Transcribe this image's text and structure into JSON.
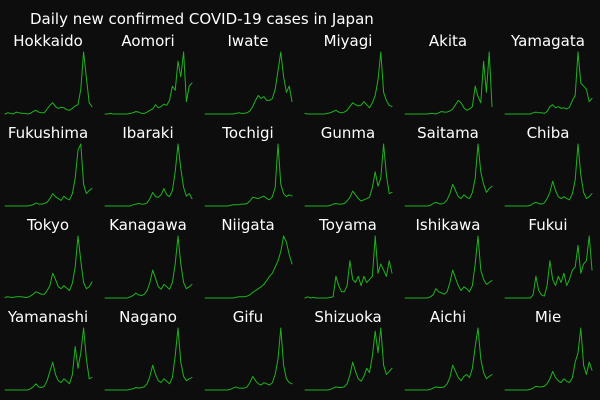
{
  "title": "Daily new confirmed COVID-19 cases in Japan",
  "chart_data": {
    "type": "line",
    "title": "Daily new confirmed COVID-19 cases in Japan",
    "layout": "small multiples, 4 rows x 6 columns, independent y scales",
    "axes_visible": false,
    "grid": false,
    "legend": "none",
    "line_color": "#1db31d",
    "background": "#0d0d0d",
    "panels": [
      {
        "name": "Hokkaido",
        "values": [
          0,
          2,
          1,
          0,
          3,
          2,
          1,
          1,
          0,
          1,
          4,
          6,
          3,
          2,
          2,
          8,
          14,
          18,
          12,
          9,
          11,
          10,
          7,
          6,
          9,
          13,
          15,
          40,
          100,
          58,
          18,
          12
        ]
      },
      {
        "name": "Aomori",
        "values": [
          0,
          0,
          1,
          0,
          0,
          0,
          0,
          0,
          0,
          1,
          2,
          4,
          3,
          1,
          1,
          3,
          6,
          8,
          15,
          10,
          12,
          16,
          14,
          22,
          45,
          38,
          85,
          60,
          100,
          20,
          45,
          50
        ]
      },
      {
        "name": "Iwate",
        "values": [
          0,
          0,
          0,
          0,
          0,
          0,
          0,
          0,
          0,
          0,
          0,
          1,
          2,
          1,
          1,
          2,
          5,
          12,
          22,
          30,
          25,
          28,
          22,
          22,
          25,
          40,
          70,
          100,
          60,
          35,
          45,
          20
        ]
      },
      {
        "name": "Miyagi",
        "values": [
          1,
          0,
          0,
          0,
          0,
          0,
          0,
          0,
          1,
          2,
          4,
          6,
          3,
          2,
          3,
          6,
          12,
          18,
          15,
          13,
          14,
          20,
          15,
          10,
          18,
          30,
          55,
          100,
          35,
          22,
          14,
          12
        ]
      },
      {
        "name": "Akita",
        "values": [
          0,
          0,
          0,
          0,
          0,
          0,
          0,
          0,
          0,
          1,
          1,
          0,
          2,
          4,
          3,
          3,
          5,
          8,
          15,
          22,
          18,
          10,
          6,
          8,
          12,
          45,
          28,
          18,
          85,
          35,
          100,
          12
        ]
      },
      {
        "name": "Yamagata",
        "values": [
          0,
          0,
          0,
          0,
          0,
          0,
          0,
          0,
          0,
          0,
          2,
          3,
          2,
          2,
          1,
          4,
          12,
          15,
          10,
          12,
          9,
          10,
          8,
          11,
          22,
          30,
          100,
          50,
          45,
          40,
          20,
          25
        ]
      },
      {
        "name": "Fukushima",
        "values": [
          0,
          0,
          0,
          0,
          0,
          0,
          0,
          0,
          0,
          1,
          2,
          5,
          3,
          3,
          4,
          6,
          12,
          20,
          15,
          12,
          9,
          16,
          12,
          10,
          20,
          45,
          90,
          100,
          35,
          20,
          25,
          28
        ]
      },
      {
        "name": "Ibaraki",
        "values": [
          0,
          0,
          0,
          0,
          0,
          0,
          0,
          0,
          0,
          0,
          2,
          3,
          4,
          3,
          3,
          5,
          12,
          22,
          15,
          14,
          18,
          28,
          18,
          15,
          25,
          55,
          100,
          60,
          30,
          16,
          20,
          12
        ]
      },
      {
        "name": "Tochigi",
        "values": [
          0,
          0,
          0,
          0,
          0,
          0,
          0,
          0,
          0,
          1,
          2,
          2,
          2,
          3,
          3,
          4,
          8,
          14,
          13,
          12,
          14,
          16,
          12,
          10,
          15,
          30,
          100,
          35,
          20,
          15,
          18,
          16
        ]
      },
      {
        "name": "Gunma",
        "values": [
          0,
          0,
          0,
          0,
          0,
          0,
          0,
          0,
          0,
          1,
          3,
          4,
          3,
          3,
          4,
          8,
          14,
          24,
          18,
          12,
          8,
          10,
          12,
          14,
          30,
          55,
          32,
          45,
          100,
          50,
          20,
          22
        ]
      },
      {
        "name": "Saitama",
        "values": [
          0,
          0,
          0,
          0,
          0,
          0,
          0,
          0,
          0,
          1,
          4,
          6,
          4,
          3,
          5,
          10,
          20,
          35,
          25,
          15,
          12,
          18,
          14,
          12,
          22,
          45,
          100,
          55,
          35,
          22,
          28,
          32
        ]
      },
      {
        "name": "Chiba",
        "values": [
          0,
          0,
          0,
          0,
          0,
          0,
          0,
          0,
          0,
          1,
          4,
          6,
          4,
          3,
          5,
          12,
          22,
          40,
          25,
          15,
          12,
          15,
          12,
          10,
          20,
          42,
          100,
          50,
          22,
          12,
          15,
          20
        ]
      },
      {
        "name": "Tokyo",
        "values": [
          1,
          2,
          1,
          1,
          2,
          2,
          2,
          1,
          1,
          3,
          6,
          10,
          8,
          6,
          6,
          12,
          20,
          40,
          30,
          18,
          15,
          20,
          16,
          12,
          24,
          50,
          100,
          60,
          25,
          15,
          18,
          26
        ]
      },
      {
        "name": "Kanagawa",
        "values": [
          0,
          0,
          0,
          0,
          0,
          0,
          0,
          0,
          0,
          2,
          4,
          8,
          5,
          4,
          6,
          12,
          25,
          45,
          32,
          18,
          14,
          22,
          18,
          14,
          25,
          55,
          100,
          55,
          25,
          15,
          18,
          22
        ]
      },
      {
        "name": "Niigata",
        "values": [
          0,
          0,
          0,
          0,
          0,
          0,
          0,
          0,
          0,
          0,
          0,
          1,
          2,
          2,
          2,
          3,
          5,
          9,
          12,
          15,
          18,
          22,
          28,
          35,
          40,
          50,
          60,
          75,
          100,
          90,
          70,
          55
        ]
      },
      {
        "name": "Toyama",
        "values": [
          0,
          2,
          0,
          1,
          0,
          0,
          0,
          0,
          0,
          1,
          2,
          35,
          20,
          10,
          10,
          20,
          60,
          30,
          25,
          35,
          20,
          35,
          25,
          30,
          35,
          100,
          40,
          55,
          45,
          35,
          60,
          40
        ]
      },
      {
        "name": "Ishikawa",
        "values": [
          0,
          0,
          0,
          0,
          0,
          0,
          0,
          0,
          0,
          2,
          5,
          15,
          10,
          8,
          6,
          10,
          25,
          45,
          32,
          20,
          12,
          18,
          15,
          10,
          20,
          55,
          100,
          45,
          30,
          22,
          25,
          28
        ]
      },
      {
        "name": "Fukui",
        "values": [
          0,
          0,
          0,
          0,
          0,
          0,
          0,
          0,
          0,
          0,
          5,
          35,
          12,
          5,
          3,
          20,
          60,
          30,
          20,
          35,
          25,
          40,
          20,
          30,
          45,
          50,
          85,
          40,
          55,
          60,
          100,
          45
        ]
      },
      {
        "name": "Yamanashi",
        "values": [
          0,
          0,
          0,
          0,
          0,
          0,
          0,
          0,
          0,
          2,
          5,
          10,
          5,
          4,
          6,
          15,
          30,
          45,
          25,
          15,
          12,
          18,
          14,
          10,
          25,
          70,
          35,
          60,
          100,
          50,
          18,
          20
        ]
      },
      {
        "name": "Nagano",
        "values": [
          0,
          0,
          0,
          0,
          0,
          0,
          0,
          0,
          0,
          1,
          2,
          4,
          3,
          4,
          5,
          10,
          22,
          40,
          25,
          15,
          12,
          18,
          14,
          10,
          20,
          55,
          100,
          45,
          22,
          15,
          18,
          20
        ]
      },
      {
        "name": "Gifu",
        "values": [
          0,
          0,
          0,
          0,
          0,
          0,
          0,
          0,
          0,
          1,
          3,
          5,
          3,
          3,
          3,
          5,
          12,
          22,
          15,
          10,
          8,
          12,
          10,
          8,
          12,
          25,
          50,
          100,
          40,
          18,
          12,
          10
        ]
      },
      {
        "name": "Shizuoka",
        "values": [
          0,
          0,
          0,
          0,
          0,
          0,
          0,
          0,
          0,
          1,
          3,
          5,
          4,
          4,
          5,
          10,
          24,
          45,
          30,
          18,
          14,
          22,
          35,
          28,
          55,
          95,
          60,
          100,
          40,
          25,
          30,
          35
        ]
      },
      {
        "name": "Aichi",
        "values": [
          0,
          0,
          0,
          0,
          0,
          0,
          0,
          0,
          0,
          1,
          3,
          5,
          4,
          4,
          5,
          10,
          20,
          40,
          30,
          20,
          15,
          22,
          25,
          20,
          35,
          70,
          100,
          50,
          28,
          18,
          22,
          25
        ]
      },
      {
        "name": "Mie",
        "values": [
          0,
          0,
          0,
          0,
          0,
          0,
          0,
          0,
          0,
          1,
          3,
          6,
          5,
          5,
          6,
          10,
          18,
          30,
          20,
          15,
          12,
          18,
          14,
          12,
          20,
          45,
          60,
          100,
          40,
          25,
          45,
          32
        ]
      }
    ]
  }
}
